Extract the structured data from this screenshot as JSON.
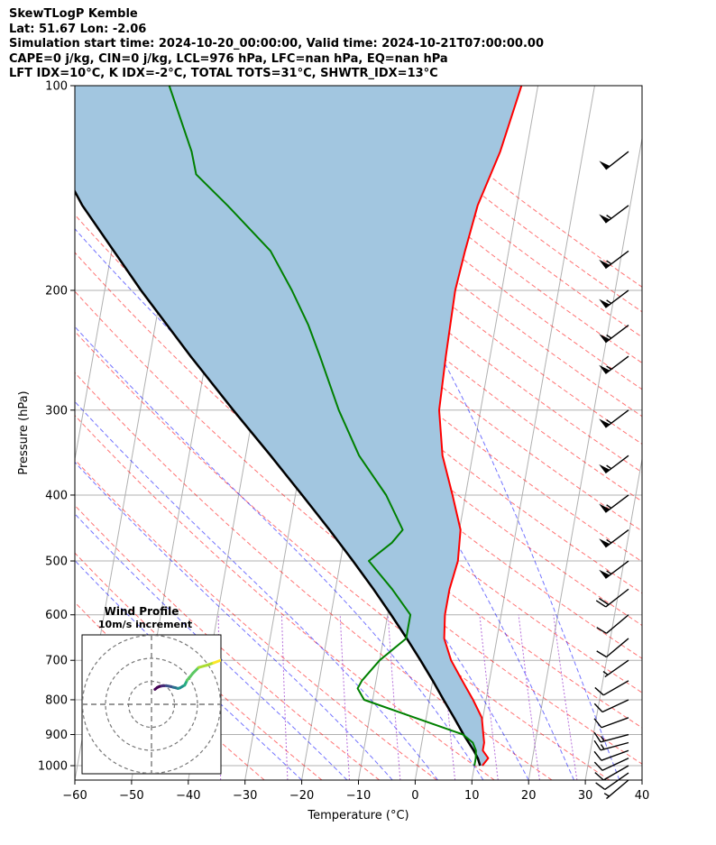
{
  "header": {
    "line1": "SkewTLogP Kemble",
    "line2": "Lat: 51.67   Lon: -2.06",
    "line3": "Simulation start time: 2024-10-20_00:00:00, Valid time: 2024-10-21T07:00:00.00",
    "line4": "CAPE=0 j/kg, CIN=0 j/kg, LCL=976 hPa, LFC=nan hPa, EQ=nan hPa",
    "line5": "LFT IDX=10°C, K IDX=-2°C, TOTAL TOTS=31°C, SHWTR_IDX=13°C"
  },
  "chart_data": {
    "type": "line",
    "xlabel": "Temperature (°C)",
    "ylabel": "Pressure (hPa)",
    "xlim": [
      -60,
      40
    ],
    "ylim": [
      1050,
      100
    ],
    "y_scale": "log",
    "x_ticks": [
      -60,
      -50,
      -40,
      -30,
      -20,
      -10,
      0,
      10,
      20,
      30,
      40
    ],
    "x_tick_labels": [
      "−60",
      "−50",
      "−40",
      "−30",
      "−20",
      "−10",
      "0",
      "10",
      "20",
      "30",
      "40"
    ],
    "y_ticks": [
      1000,
      900,
      800,
      700,
      600,
      500,
      400,
      300,
      200,
      100
    ],
    "y_tick_labels": [
      "1000",
      "900",
      "800",
      "700",
      "600",
      "500",
      "400",
      "300",
      "200",
      "100"
    ],
    "grid": true,
    "temperature": {
      "color": "#ff0000",
      "p": [
        1000,
        975,
        950,
        925,
        900,
        850,
        800,
        750,
        700,
        650,
        600,
        550,
        500,
        450,
        400,
        350,
        300,
        250,
        200,
        175,
        150,
        125,
        100
      ],
      "t": [
        11.4,
        12.2,
        11.0,
        11.0,
        10.6,
        9.8,
        7.7,
        5.2,
        2.6,
        0.7,
        0.1,
        0.1,
        0.7,
        0.2,
        -2.3,
        -5.3,
        -7.3,
        -7.8,
        -8.2,
        -7.7,
        -6.9,
        -4.6,
        -2.9
      ]
    },
    "dewpoint": {
      "color": "#008000",
      "p": [
        1000,
        975,
        950,
        925,
        900,
        850,
        800,
        770,
        750,
        700,
        650,
        600,
        550,
        500,
        470,
        450,
        400,
        350,
        300,
        250,
        225,
        200,
        175,
        150,
        135,
        125,
        100
      ],
      "t": [
        10.0,
        10.0,
        9.8,
        9.0,
        7.0,
        -2.0,
        -11.5,
        -13.0,
        -12.5,
        -10.0,
        -6.0,
        -6.0,
        -10.0,
        -15.0,
        -11.5,
        -10.0,
        -14.0,
        -20.0,
        -25.0,
        -30.0,
        -33.0,
        -37.0,
        -42.0,
        -51.0,
        -57.5,
        -59.0,
        -65.0
      ]
    },
    "parcel": {
      "color": "#000000",
      "p": [
        1000,
        976,
        950,
        900,
        850,
        800,
        750,
        700,
        650,
        600,
        550,
        500,
        450,
        400,
        350,
        300,
        250,
        200,
        150,
        100
      ],
      "t": [
        11.0,
        10.4,
        9.4,
        7.1,
        4.9,
        2.5,
        0.0,
        -2.8,
        -5.9,
        -9.4,
        -13.3,
        -17.8,
        -22.9,
        -28.8,
        -35.6,
        -43.6,
        -52.8,
        -63.6,
        -76.6,
        -91.7
      ]
    },
    "shading_color": "#a2c6e0",
    "wind_barbs": {
      "p": [
        1050,
        1025,
        1000,
        975,
        950,
        925,
        900,
        850,
        800,
        750,
        700,
        650,
        600,
        550,
        500,
        450,
        400,
        350,
        300,
        250,
        225,
        200,
        175,
        150,
        125
      ],
      "speed_kt": [
        5,
        10,
        10,
        10,
        10,
        15,
        15,
        10,
        10,
        10,
        5,
        10,
        10,
        20,
        55,
        55,
        55,
        55,
        55,
        55,
        55,
        55,
        55,
        55,
        50
      ],
      "direction_deg": [
        230,
        235,
        240,
        245,
        250,
        255,
        255,
        250,
        245,
        240,
        235,
        230,
        230,
        232,
        233,
        233,
        233,
        233,
        233,
        233,
        233,
        233,
        233,
        233,
        232
      ]
    },
    "hodograph": {
      "title": "Wind Profile",
      "subtitle": "10m/s increment",
      "rings_ms": [
        10,
        20,
        30
      ],
      "u": [
        1.5,
        2.5,
        3.5,
        4.5,
        5.5,
        6.5,
        7.5,
        8.5,
        9.5,
        10.5,
        11.5,
        12.5,
        13.5,
        14.4,
        14.8,
        15.5,
        16.8,
        18,
        20.5,
        24,
        27,
        31,
        35
      ],
      "v": [
        6.5,
        7.3,
        7.8,
        8.0,
        8.1,
        8.1,
        7.9,
        7.7,
        7.4,
        7.2,
        6.9,
        7.2,
        7.8,
        8.3,
        9.0,
        10.5,
        12.0,
        13.5,
        16.0,
        17.0,
        18.0,
        19.5,
        21.5
      ],
      "colors": [
        "#440154",
        "#472c7a",
        "#3b518b",
        "#2c718e",
        "#21908d",
        "#27ad81",
        "#5cc863",
        "#aadc32",
        "#fde725"
      ]
    }
  }
}
